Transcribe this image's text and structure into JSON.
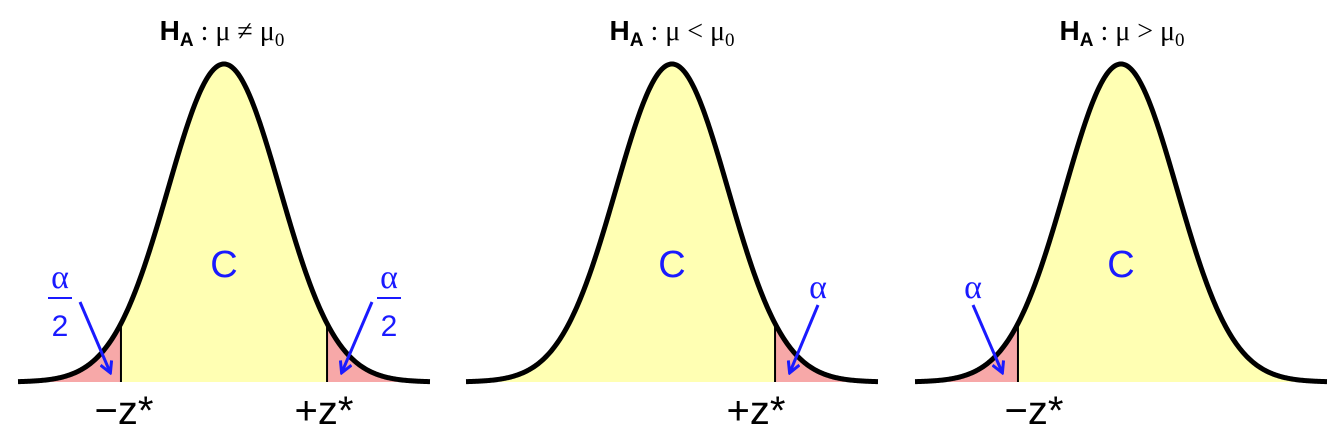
{
  "colors": {
    "curve": "#000000",
    "accept_fill": "#ffffb3",
    "reject_fill": "#f7a8a8",
    "annotation": "#1a1aff"
  },
  "panels": [
    {
      "id": "two-tailed",
      "title_h": "H",
      "title_sub": "A",
      "title_rest": " : μ ≠ μ",
      "title_sub0": "0",
      "center_label": "C",
      "alpha_text": "α",
      "alpha_den": "2",
      "z_left": "−z*",
      "z_right": "+z*"
    },
    {
      "id": "left-tailed",
      "title_h": "H",
      "title_sub": "A",
      "title_rest": " : μ < μ",
      "title_sub0": "0",
      "center_label": "C",
      "alpha_text": "α",
      "z_right": "+z*"
    },
    {
      "id": "right-tailed",
      "title_h": "H",
      "title_sub": "A",
      "title_rest": " : μ > μ",
      "title_sub0": "0",
      "center_label": "C",
      "alpha_text": "α",
      "z_left": "−z*"
    }
  ]
}
